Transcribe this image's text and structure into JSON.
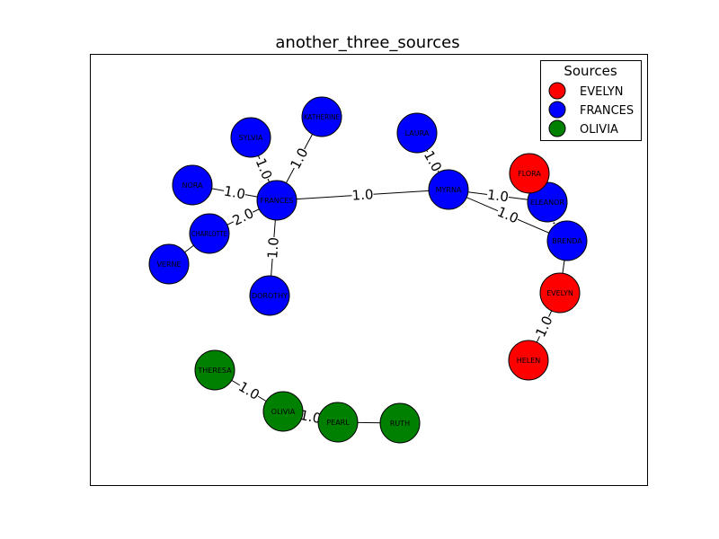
{
  "title": "another_three_sources",
  "legend": {
    "title": "Sources",
    "entries": [
      {
        "label": "EVELYN",
        "color": "#ff0000"
      },
      {
        "label": "FRANCES",
        "color": "#0000ff"
      },
      {
        "label": "OLIVIA",
        "color": "#008000"
      }
    ]
  },
  "nodes": [
    {
      "id": "FRANCES",
      "label": "FRANCES",
      "source": "FRANCES",
      "color": "#0000ff"
    },
    {
      "id": "KATHERINE",
      "label": "KATHERINE",
      "source": "FRANCES",
      "color": "#0000ff"
    },
    {
      "id": "SYLVIA",
      "label": "SYLVIA",
      "source": "FRANCES",
      "color": "#0000ff"
    },
    {
      "id": "NORA",
      "label": "NORA",
      "source": "FRANCES",
      "color": "#0000ff"
    },
    {
      "id": "CHARLOTTE",
      "label": "CHARLOTTE",
      "source": "FRANCES",
      "color": "#0000ff"
    },
    {
      "id": "VERNE",
      "label": "VERNE",
      "source": "FRANCES",
      "color": "#0000ff"
    },
    {
      "id": "DOROTHY",
      "label": "DOROTHY",
      "source": "FRANCES",
      "color": "#0000ff"
    },
    {
      "id": "LAURA",
      "label": "LAURA",
      "source": "FRANCES",
      "color": "#0000ff"
    },
    {
      "id": "MYRNA",
      "label": "MYRNA",
      "source": "FRANCES",
      "color": "#0000ff"
    },
    {
      "id": "ELEANOR",
      "label": "ELEANOR",
      "source": "FRANCES",
      "color": "#0000ff"
    },
    {
      "id": "BRENDA",
      "label": "BRENDA",
      "source": "FRANCES",
      "color": "#0000ff"
    },
    {
      "id": "FLORA",
      "label": "FLORA",
      "source": "EVELYN",
      "color": "#ff0000"
    },
    {
      "id": "EVELYN",
      "label": "EVELYN",
      "source": "EVELYN",
      "color": "#ff0000"
    },
    {
      "id": "HELEN",
      "label": "HELEN",
      "source": "EVELYN",
      "color": "#ff0000"
    },
    {
      "id": "THERESA",
      "label": "THERESA",
      "source": "OLIVIA",
      "color": "#008000"
    },
    {
      "id": "OLIVIA",
      "label": "OLIVIA",
      "source": "OLIVIA",
      "color": "#008000"
    },
    {
      "id": "PEARL",
      "label": "PEARL",
      "source": "OLIVIA",
      "color": "#008000"
    },
    {
      "id": "RUTH",
      "label": "RUTH",
      "source": "OLIVIA",
      "color": "#008000"
    }
  ],
  "edges": [
    {
      "from": "FRANCES",
      "to": "KATHERINE",
      "label": "1.0"
    },
    {
      "from": "FRANCES",
      "to": "SYLVIA",
      "label": "1.0"
    },
    {
      "from": "FRANCES",
      "to": "NORA",
      "label": "1.0"
    },
    {
      "from": "FRANCES",
      "to": "CHARLOTTE",
      "label": "2.0"
    },
    {
      "from": "CHARLOTTE",
      "to": "VERNE",
      "label": ""
    },
    {
      "from": "FRANCES",
      "to": "DOROTHY",
      "label": "1.0"
    },
    {
      "from": "FRANCES",
      "to": "MYRNA",
      "label": "1.0"
    },
    {
      "from": "LAURA",
      "to": "MYRNA",
      "label": "1.0"
    },
    {
      "from": "MYRNA",
      "to": "ELEANOR",
      "label": "1.0"
    },
    {
      "from": "MYRNA",
      "to": "BRENDA",
      "label": "1.0"
    },
    {
      "from": "FLORA",
      "to": "ELEANOR",
      "label": ""
    },
    {
      "from": "ELEANOR",
      "to": "BRENDA",
      "label": "1.0"
    },
    {
      "from": "BRENDA",
      "to": "EVELYN",
      "label": ""
    },
    {
      "from": "EVELYN",
      "to": "HELEN",
      "label": "1.0"
    },
    {
      "from": "THERESA",
      "to": "OLIVIA",
      "label": "1.0"
    },
    {
      "from": "OLIVIA",
      "to": "PEARL",
      "label": "1.0"
    },
    {
      "from": "PEARL",
      "to": "RUTH",
      "label": ""
    }
  ]
}
